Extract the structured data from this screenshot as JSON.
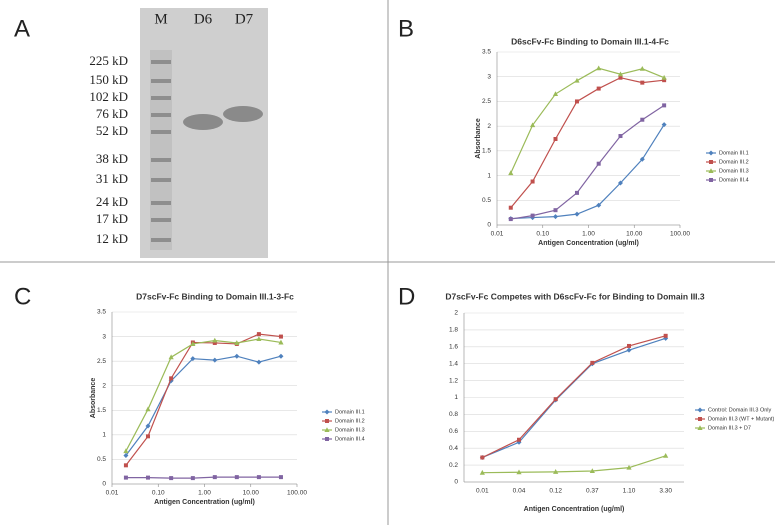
{
  "panel_labels": [
    "A",
    "B",
    "C",
    "D"
  ],
  "gel": {
    "lanes": [
      "M",
      "D6",
      "D7"
    ],
    "markers": [
      "225 kD",
      "150 kD",
      "102 kD",
      "76 kD",
      "52 kD",
      "38 kD",
      "31 kD",
      "24 kD",
      "17 kD",
      "12 kD"
    ]
  },
  "chart_data": [
    {
      "type": "line",
      "title": "D6scFv-Fc Binding to Domain III.1-4-Fc",
      "xlabel": "Antigen Concentration (ug/ml)",
      "ylabel": "Absorbance",
      "xscale": "log",
      "grid": true,
      "legend": "right",
      "x": [
        0.02,
        0.06,
        0.19,
        0.56,
        1.67,
        5,
        15,
        45
      ],
      "xlim": [
        0.01,
        100
      ],
      "xticks": [
        0.01,
        {
          "value": 0.1,
          "label": "0.10"
        },
        {
          "value": 1,
          "label": "1.00"
        },
        {
          "value": 10,
          "label": "10.00"
        },
        {
          "value": 100,
          "label": "100.00"
        }
      ],
      "ylim": [
        0,
        3.5
      ],
      "yticks": [
        0,
        0.5,
        1,
        1.5,
        2,
        2.5,
        3,
        3.5
      ],
      "series": [
        {
          "name": "Domain III.1",
          "color": "#4f81bd",
          "values": [
            0.13,
            0.15,
            0.17,
            0.22,
            0.4,
            0.85,
            1.33,
            2.03
          ]
        },
        {
          "name": "Domain III.2",
          "color": "#c0504d",
          "values": [
            0.35,
            0.88,
            1.74,
            2.5,
            2.76,
            2.98,
            2.88,
            2.93
          ]
        },
        {
          "name": "Domain III.3",
          "color": "#9bbb59",
          "values": [
            1.05,
            2.02,
            2.65,
            2.92,
            3.17,
            3.05,
            3.16,
            2.98
          ]
        },
        {
          "name": "Domain III.4",
          "color": "#8064a2",
          "values": [
            0.12,
            0.19,
            0.3,
            0.65,
            1.24,
            1.8,
            2.13,
            2.42
          ]
        }
      ]
    },
    {
      "type": "line",
      "title": "D7scFv-Fc Binding to Domain III.1-3-Fc",
      "xlabel": "Antigen Concentration (ug/ml)",
      "ylabel": "Absorbance",
      "xscale": "log",
      "grid": true,
      "legend": "right",
      "x": [
        0.02,
        0.06,
        0.19,
        0.56,
        1.67,
        5,
        15,
        45
      ],
      "xlim": [
        0.01,
        100
      ],
      "xticks": [
        0.01,
        {
          "value": 0.1,
          "label": "0.10"
        },
        {
          "value": 1,
          "label": "1.00"
        },
        {
          "value": 10,
          "label": "10.00"
        },
        {
          "value": 100,
          "label": "100.00"
        }
      ],
      "ylim": [
        0,
        3.5
      ],
      "yticks": [
        0,
        0.5,
        1,
        1.5,
        2,
        2.5,
        3,
        3.5
      ],
      "series": [
        {
          "name": "Domain III.1",
          "color": "#4f81bd",
          "values": [
            0.58,
            1.18,
            2.1,
            2.55,
            2.52,
            2.6,
            2.48,
            2.6
          ]
        },
        {
          "name": "Domain III.2",
          "color": "#c0504d",
          "values": [
            0.38,
            0.97,
            2.15,
            2.88,
            2.87,
            2.85,
            3.05,
            3.0
          ]
        },
        {
          "name": "Domain III.3",
          "color": "#9bbb59",
          "values": [
            0.67,
            1.52,
            2.58,
            2.85,
            2.92,
            2.87,
            2.95,
            2.88
          ]
        },
        {
          "name": "Domain III.4",
          "color": "#8064a2",
          "values": [
            0.13,
            0.13,
            0.12,
            0.12,
            0.14,
            0.14,
            0.14,
            0.14
          ]
        }
      ]
    },
    {
      "type": "line",
      "title": "D7scFv-Fc Competes with D6scFv-Fc for Binding to Domain III.3",
      "xlabel": "Antigen Concentration (ug/ml)",
      "grid": true,
      "legend": "right",
      "categories": [
        "0.01",
        "0.04",
        "0.12",
        "0.37",
        "1.10",
        "3.30"
      ],
      "ylim": [
        0,
        2
      ],
      "yticks": [
        0,
        0.2,
        0.4,
        0.6,
        0.8,
        1,
        1.2,
        1.4,
        1.6,
        1.8,
        2
      ],
      "series": [
        {
          "name": "Control: Domain III.3 Only",
          "color": "#4f81bd",
          "values": [
            0.29,
            0.47,
            0.97,
            1.4,
            1.56,
            1.7
          ]
        },
        {
          "name": "Domain III.3 (WT + Mutant)",
          "color": "#c0504d",
          "values": [
            0.29,
            0.5,
            0.98,
            1.41,
            1.61,
            1.73
          ]
        },
        {
          "name": "Domain III.3 + D7",
          "color": "#9bbb59",
          "values": [
            0.11,
            0.115,
            0.12,
            0.13,
            0.17,
            0.31
          ]
        }
      ]
    }
  ]
}
